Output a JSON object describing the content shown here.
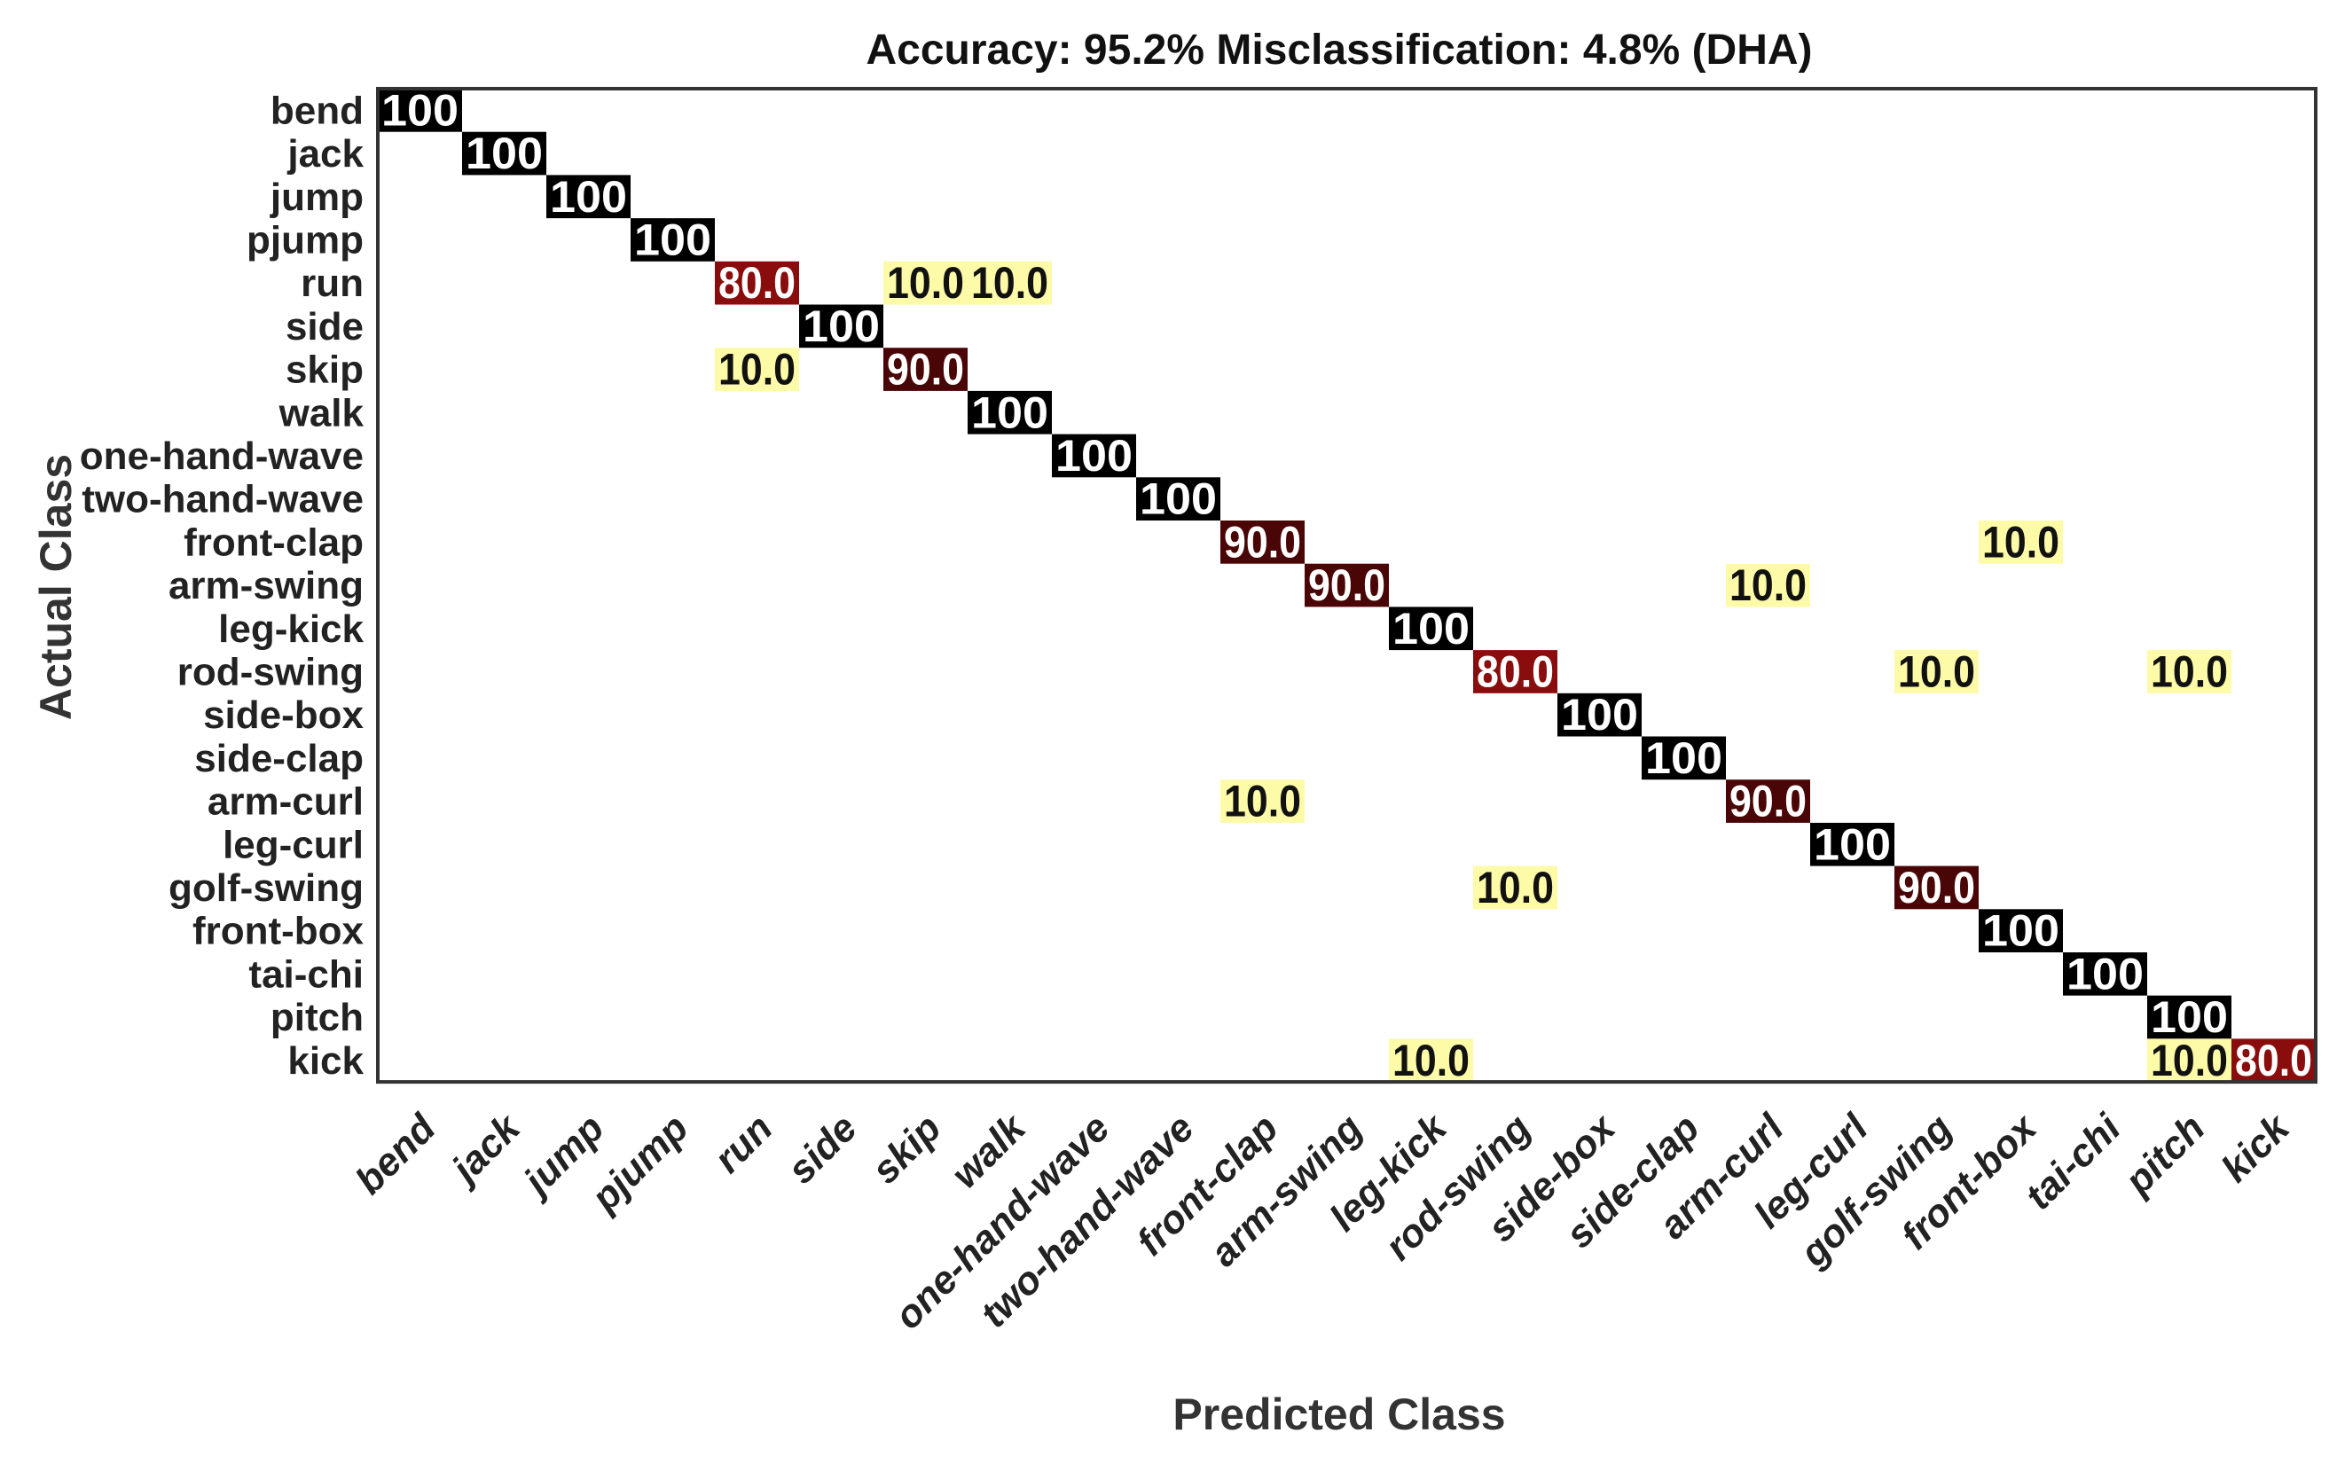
{
  "chart_data": {
    "type": "heatmap",
    "title": "Accuracy: 95.2%  Misclassification: 4.8% (DHA)",
    "xlabel": "Predicted Class",
    "ylabel": "Actual Class",
    "row_labels": [
      "bend",
      "jack",
      "jump",
      "pjump",
      "run",
      "side",
      "skip",
      "walk",
      "one-hand-wave",
      "two-hand-wave",
      "front-clap",
      "arm-swing",
      "leg-kick",
      "rod-swing",
      "side-box",
      "side-clap",
      "arm-curl",
      "leg-curl",
      "golf-swing",
      "front-box",
      "tai-chi",
      "pitch",
      "kick"
    ],
    "col_labels": [
      "bend",
      "jack",
      "jump",
      "pjump",
      "run",
      "side",
      "skip",
      "walk",
      "one-hand-wave",
      "two-hand-wave",
      "front-clap",
      "arm-swing",
      "leg-kick",
      "rod-swing",
      "side-box",
      "side-clap",
      "arm-curl",
      "leg-curl",
      "golf-swing",
      "front-box",
      "tai-chi",
      "pitch",
      "kick"
    ],
    "cells": [
      {
        "row": 0,
        "col": 0,
        "value": 100,
        "label": "100"
      },
      {
        "row": 1,
        "col": 1,
        "value": 100,
        "label": "100"
      },
      {
        "row": 2,
        "col": 2,
        "value": 100,
        "label": "100"
      },
      {
        "row": 3,
        "col": 3,
        "value": 100,
        "label": "100"
      },
      {
        "row": 4,
        "col": 4,
        "value": 80.0,
        "label": "80.0"
      },
      {
        "row": 4,
        "col": 6,
        "value": 10.0,
        "label": "10.0"
      },
      {
        "row": 4,
        "col": 7,
        "value": 10.0,
        "label": "10.0"
      },
      {
        "row": 5,
        "col": 5,
        "value": 100,
        "label": "100"
      },
      {
        "row": 6,
        "col": 4,
        "value": 10.0,
        "label": "10.0"
      },
      {
        "row": 6,
        "col": 6,
        "value": 90.0,
        "label": "90.0"
      },
      {
        "row": 7,
        "col": 7,
        "value": 100,
        "label": "100"
      },
      {
        "row": 8,
        "col": 8,
        "value": 100,
        "label": "100"
      },
      {
        "row": 9,
        "col": 9,
        "value": 100,
        "label": "100"
      },
      {
        "row": 10,
        "col": 10,
        "value": 90.0,
        "label": "90.0"
      },
      {
        "row": 10,
        "col": 19,
        "value": 10.0,
        "label": "10.0"
      },
      {
        "row": 11,
        "col": 11,
        "value": 90.0,
        "label": "90.0"
      },
      {
        "row": 11,
        "col": 16,
        "value": 10.0,
        "label": "10.0"
      },
      {
        "row": 12,
        "col": 12,
        "value": 100,
        "label": "100"
      },
      {
        "row": 13,
        "col": 13,
        "value": 80.0,
        "label": "80.0"
      },
      {
        "row": 13,
        "col": 18,
        "value": 10.0,
        "label": "10.0"
      },
      {
        "row": 13,
        "col": 21,
        "value": 10.0,
        "label": "10.0"
      },
      {
        "row": 14,
        "col": 14,
        "value": 100,
        "label": "100"
      },
      {
        "row": 15,
        "col": 15,
        "value": 100,
        "label": "100"
      },
      {
        "row": 16,
        "col": 10,
        "value": 10.0,
        "label": "10.0"
      },
      {
        "row": 16,
        "col": 16,
        "value": 90.0,
        "label": "90.0"
      },
      {
        "row": 17,
        "col": 17,
        "value": 100,
        "label": "100"
      },
      {
        "row": 18,
        "col": 13,
        "value": 10.0,
        "label": "10.0"
      },
      {
        "row": 18,
        "col": 18,
        "value": 90.0,
        "label": "90.0"
      },
      {
        "row": 19,
        "col": 19,
        "value": 100,
        "label": "100"
      },
      {
        "row": 20,
        "col": 20,
        "value": 100,
        "label": "100"
      },
      {
        "row": 21,
        "col": 21,
        "value": 100,
        "label": "100"
      },
      {
        "row": 22,
        "col": 12,
        "value": 10.0,
        "label": "10.0"
      },
      {
        "row": 22,
        "col": 21,
        "value": 10.0,
        "label": "10.0"
      },
      {
        "row": 22,
        "col": 22,
        "value": 80.0,
        "label": "80.0"
      }
    ],
    "color_scale": {
      "100": "#000000",
      "90": "#4a0606",
      "80": "#8a0d0d",
      "10": "#fdfaa8"
    },
    "text_colors": {
      "dark": "#ffffff",
      "light": "#111111"
    }
  }
}
